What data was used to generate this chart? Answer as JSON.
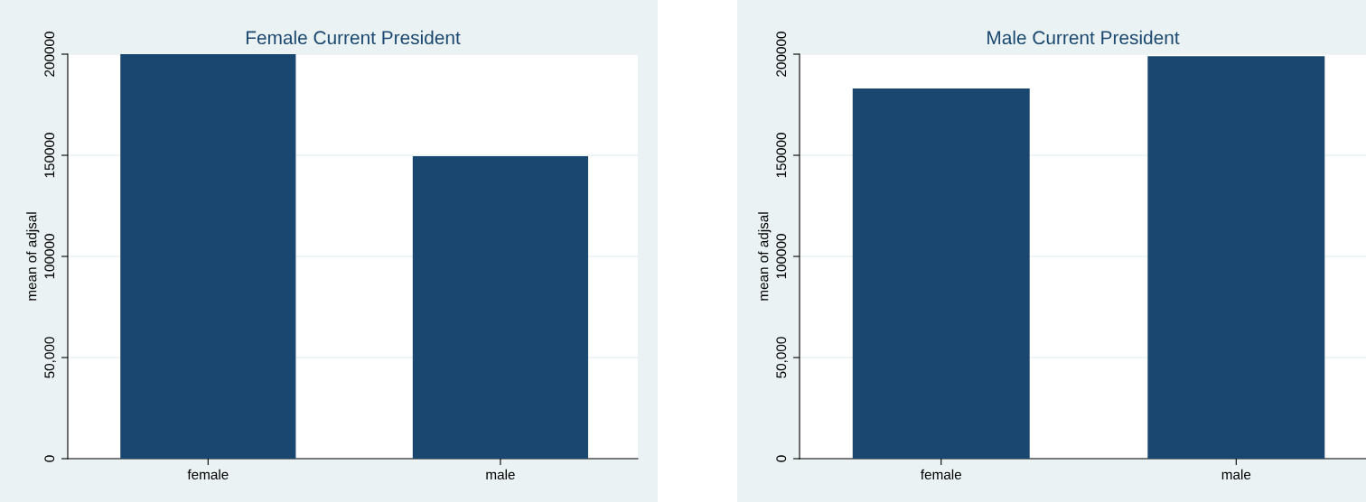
{
  "chart_data": [
    {
      "type": "bar",
      "title": "Female Current President",
      "ylabel": "mean of adjsal",
      "categories": [
        "female",
        "male"
      ],
      "values": [
        200000,
        149500
      ],
      "color": "#1a476f",
      "ylim": [
        0,
        200000
      ],
      "yticks": [
        0,
        {
          "value": 50000,
          "label": "50,000"
        },
        100000,
        150000,
        200000
      ],
      "grid": "y"
    },
    {
      "type": "bar",
      "title": "Male Current President",
      "ylabel": "mean of adjsal",
      "categories": [
        "female",
        "male"
      ],
      "values": [
        183000,
        199000
      ],
      "color": "#1a476f",
      "ylim": [
        0,
        200000
      ],
      "yticks": [
        0,
        {
          "value": 50000,
          "label": "50,000"
        },
        100000,
        150000,
        200000
      ],
      "grid": "y"
    }
  ]
}
